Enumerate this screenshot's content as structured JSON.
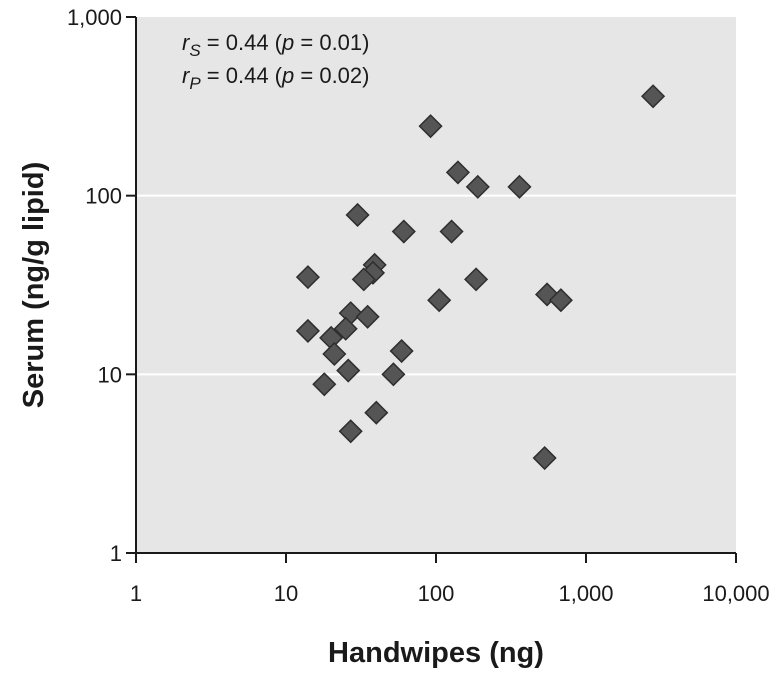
{
  "chart_data": {
    "type": "scatter",
    "xlabel": "Handwipes (ng)",
    "ylabel": "Serum (ng/g lipid)",
    "xscale": "log",
    "yscale": "log",
    "xlim": [
      1,
      10000
    ],
    "ylim": [
      1,
      1000
    ],
    "x_ticks": [
      {
        "value": 1,
        "label": "1"
      },
      {
        "value": 10,
        "label": "10"
      },
      {
        "value": 100,
        "label": "100"
      },
      {
        "value": 1000,
        "label": "1,000"
      },
      {
        "value": 10000,
        "label": "10,000"
      }
    ],
    "y_ticks": [
      {
        "value": 1,
        "label": "1"
      },
      {
        "value": 10,
        "label": "10"
      },
      {
        "value": 100,
        "label": "100"
      },
      {
        "value": 1000,
        "label": "1,000"
      }
    ],
    "grid": "horizontal white lines at y = 10, 100",
    "background_color": "#e6e6e6",
    "marker_color": "#555555",
    "marker": "diamond",
    "annotations": [
      {
        "sym": "r",
        "sub": "S",
        "rest": " = 0.44 (",
        "p": "p",
        "tail": " = 0.01)"
      },
      {
        "sym": "r",
        "sub": "P",
        "rest": " = 0.44 (",
        "p": "p",
        "tail": " = 0.02)"
      }
    ],
    "points": [
      {
        "x": 2800,
        "y": 360
      },
      {
        "x": 92,
        "y": 245
      },
      {
        "x": 140,
        "y": 135
      },
      {
        "x": 190,
        "y": 112
      },
      {
        "x": 360,
        "y": 112
      },
      {
        "x": 30,
        "y": 78
      },
      {
        "x": 61,
        "y": 63
      },
      {
        "x": 127,
        "y": 63
      },
      {
        "x": 39,
        "y": 41
      },
      {
        "x": 38,
        "y": 37
      },
      {
        "x": 14,
        "y": 35
      },
      {
        "x": 33,
        "y": 34
      },
      {
        "x": 185,
        "y": 34
      },
      {
        "x": 550,
        "y": 28
      },
      {
        "x": 680,
        "y": 26
      },
      {
        "x": 105,
        "y": 26
      },
      {
        "x": 27,
        "y": 22
      },
      {
        "x": 35,
        "y": 21
      },
      {
        "x": 25,
        "y": 18
      },
      {
        "x": 14,
        "y": 17.5
      },
      {
        "x": 20,
        "y": 16
      },
      {
        "x": 21,
        "y": 13
      },
      {
        "x": 59,
        "y": 13.5
      },
      {
        "x": 26,
        "y": 10.5
      },
      {
        "x": 52,
        "y": 10
      },
      {
        "x": 18,
        "y": 8.8
      },
      {
        "x": 40,
        "y": 6.1
      },
      {
        "x": 27,
        "y": 4.8
      },
      {
        "x": 530,
        "y": 3.4
      }
    ]
  }
}
